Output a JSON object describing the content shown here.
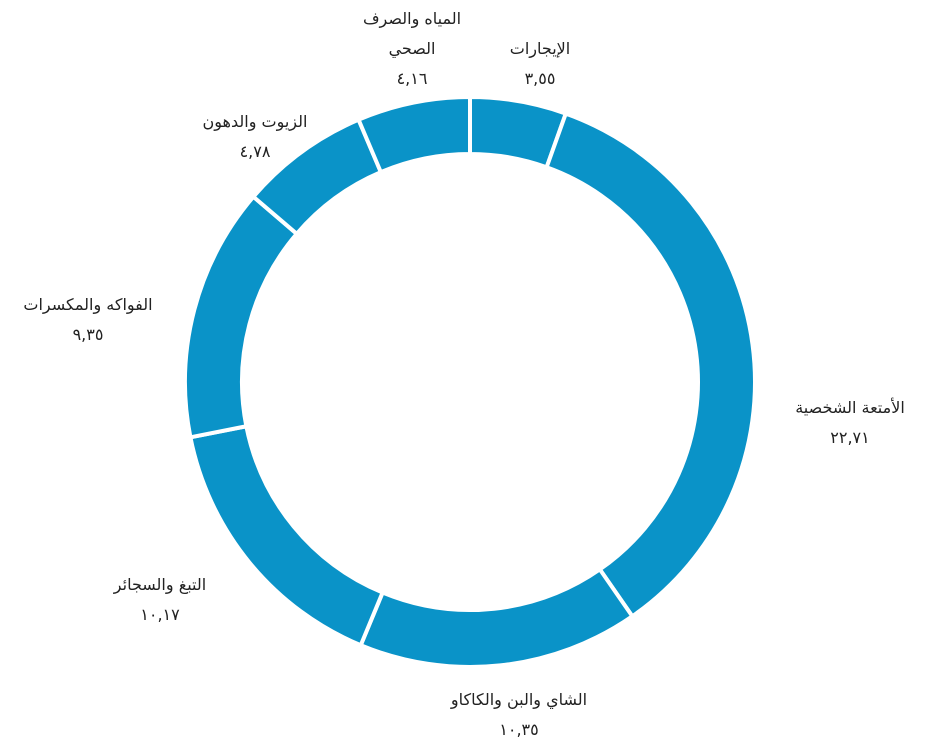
{
  "chart_data": {
    "type": "donut",
    "categories": [
      "الإيجارات",
      "الأمتعة الشخصية",
      "الشاي والبن والكاكاو",
      "التبغ والسجائر",
      "الفواكه والمكسرات",
      "الزيوت والدهون",
      "المياه والصرف الصحي"
    ],
    "values": [
      3.55,
      22.71,
      10.35,
      10.17,
      9.35,
      4.78,
      4.16
    ],
    "value_labels": [
      "٣,٥٥",
      "٢٢,٧١",
      "١٠,٣٥",
      "١٠,١٧",
      "٩,٣٥",
      "٤,٧٨",
      "٤,١٦"
    ],
    "color": "#0a93c8"
  }
}
